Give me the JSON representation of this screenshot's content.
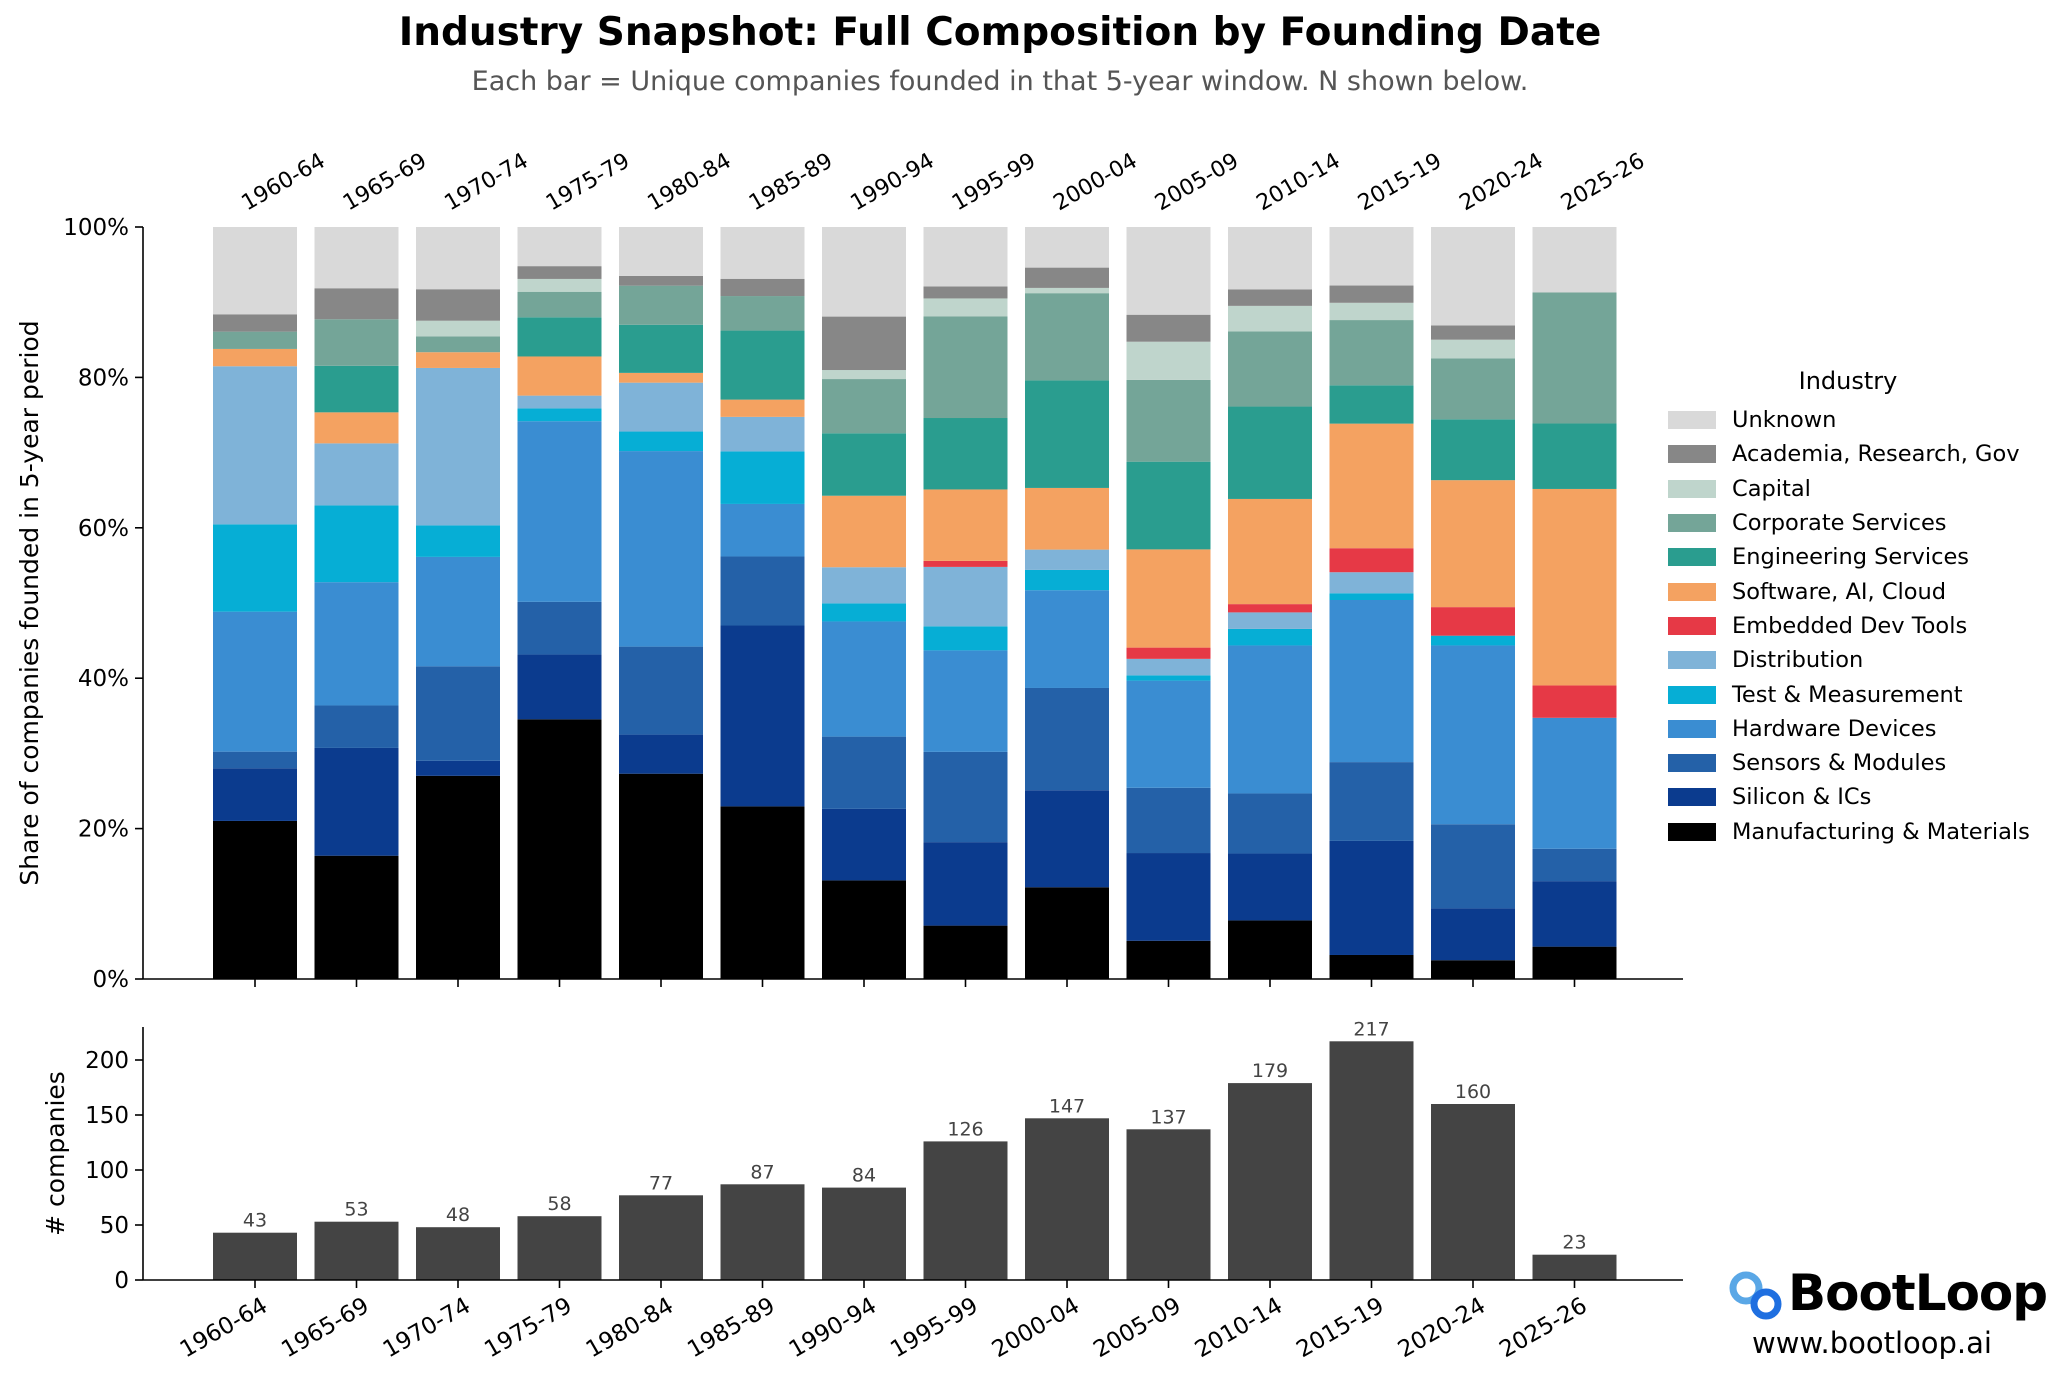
{
  "title": "Industry Snapshot: Full Composition by Founding Date",
  "subtitle": "Each bar = Unique companies founded in that 5-year window. N shown below.",
  "brand": {
    "name": "BootLoop",
    "url": "www.bootloop.ai",
    "icon": "chain-link-icon"
  },
  "legend": {
    "title": "Industry",
    "placement": "right"
  },
  "chart_data": [
    {
      "type": "bar",
      "stacked": true,
      "normalized": true,
      "ylabel": "Share of companies founded in 5-year period",
      "ylim": [
        0,
        1
      ],
      "yticks": [
        "0%",
        "20%",
        "40%",
        "60%",
        "80%",
        "100%"
      ],
      "categories": [
        "1960-64",
        "1965-69",
        "1970-74",
        "1975-79",
        "1980-84",
        "1985-89",
        "1990-94",
        "1995-99",
        "2000-04",
        "2005-09",
        "2010-14",
        "2015-19",
        "2020-24",
        "2025-26"
      ],
      "series": [
        {
          "name": "Manufacturing & Materials",
          "color": "#000000",
          "values": [
            0.21,
            0.151,
            0.271,
            0.345,
            0.273,
            0.23,
            0.131,
            0.071,
            0.122,
            0.051,
            0.078,
            0.032,
            0.025,
            0.043
          ]
        },
        {
          "name": "Silicon & ICs",
          "color": "#0b3b8e",
          "values": [
            0.07,
            0.132,
            0.02,
            0.086,
            0.052,
            0.241,
            0.095,
            0.111,
            0.129,
            0.117,
            0.089,
            0.152,
            0.069,
            0.087
          ]
        },
        {
          "name": "Sensors & Modules",
          "color": "#2461a8",
          "values": [
            0.022,
            0.052,
            0.126,
            0.07,
            0.117,
            0.092,
            0.096,
            0.12,
            0.136,
            0.087,
            0.08,
            0.105,
            0.112,
            0.043
          ]
        },
        {
          "name": "Hardware Devices",
          "color": "#3a8dd2",
          "values": [
            0.186,
            0.151,
            0.146,
            0.24,
            0.26,
            0.07,
            0.153,
            0.135,
            0.13,
            0.143,
            0.197,
            0.216,
            0.238,
            0.174
          ]
        },
        {
          "name": "Test & Measurement",
          "color": "#06aed5",
          "values": [
            0.116,
            0.094,
            0.042,
            0.017,
            0.026,
            0.07,
            0.024,
            0.032,
            0.027,
            0.007,
            0.022,
            0.009,
            0.013,
            0.0
          ]
        },
        {
          "name": "Distribution",
          "color": "#7fb3d8",
          "values": [
            0.21,
            0.076,
            0.21,
            0.017,
            0.065,
            0.046,
            0.048,
            0.079,
            0.027,
            0.022,
            0.022,
            0.028,
            0.0,
            0.0
          ]
        },
        {
          "name": "Embedded Dev Tools",
          "color": "#e63946",
          "values": [
            0.0,
            0.0,
            0.0,
            0.0,
            0.0,
            0.0,
            0.0,
            0.008,
            0.0,
            0.015,
            0.011,
            0.032,
            0.038,
            0.043
          ]
        },
        {
          "name": "Software, AI, Cloud",
          "color": "#f4a261",
          "values": [
            0.023,
            0.038,
            0.021,
            0.052,
            0.013,
            0.023,
            0.095,
            0.095,
            0.082,
            0.131,
            0.14,
            0.166,
            0.169,
            0.261
          ]
        },
        {
          "name": "Engineering Services",
          "color": "#2a9d8f",
          "values": [
            0.0,
            0.057,
            0.0,
            0.052,
            0.064,
            0.092,
            0.083,
            0.095,
            0.143,
            0.117,
            0.123,
            0.051,
            0.081,
            0.087
          ]
        },
        {
          "name": "Corporate Services",
          "color": "#74a598",
          "values": [
            0.023,
            0.057,
            0.021,
            0.034,
            0.052,
            0.046,
            0.072,
            0.135,
            0.116,
            0.109,
            0.1,
            0.087,
            0.081,
            0.174
          ]
        },
        {
          "name": "Capital",
          "color": "#bfd5cc",
          "values": [
            0.0,
            0.0,
            0.021,
            0.017,
            0.0,
            0.0,
            0.012,
            0.024,
            0.007,
            0.051,
            0.034,
            0.023,
            0.025,
            0.0
          ]
        },
        {
          "name": "Academia, Research, Gov",
          "color": "#878787",
          "values": [
            0.023,
            0.038,
            0.042,
            0.017,
            0.013,
            0.023,
            0.071,
            0.016,
            0.027,
            0.036,
            0.022,
            0.023,
            0.019,
            0.0
          ]
        },
        {
          "name": "Unknown",
          "color": "#d9d9d9",
          "values": [
            0.116,
            0.075,
            0.083,
            0.052,
            0.065,
            0.069,
            0.119,
            0.079,
            0.054,
            0.117,
            0.083,
            0.078,
            0.131,
            0.087
          ]
        }
      ]
    },
    {
      "type": "bar",
      "ylabel": "# companies",
      "ylim": [
        0,
        230
      ],
      "yticks": [
        0,
        50,
        100,
        150,
        200
      ],
      "color": "#444444",
      "categories": [
        "1960-64",
        "1965-69",
        "1970-74",
        "1975-79",
        "1980-84",
        "1985-89",
        "1990-94",
        "1995-99",
        "2000-04",
        "2005-09",
        "2010-14",
        "2015-19",
        "2020-24",
        "2025-26"
      ],
      "values": [
        43,
        53,
        48,
        58,
        77,
        87,
        84,
        126,
        147,
        137,
        179,
        217,
        160,
        23
      ]
    }
  ]
}
